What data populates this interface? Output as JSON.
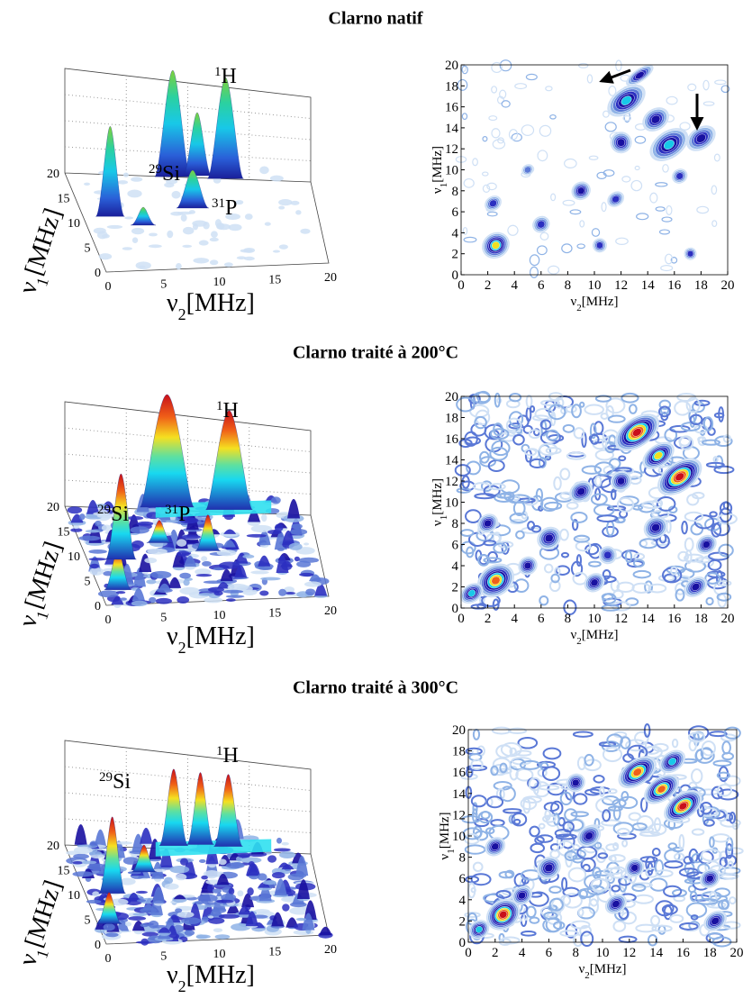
{
  "panels": [
    {
      "title": "Clarno natif",
      "surface": {
        "peaks": [
          {
            "sup": "1",
            "text": "H"
          },
          {
            "sup": "29",
            "text": "Si"
          },
          {
            "sup": "31",
            "text": "P"
          }
        ],
        "x_axis": {
          "symbol": "ν",
          "sub": "2",
          "unit": "[MHz]",
          "ticks": [
            0,
            5,
            10,
            15,
            20
          ]
        },
        "y_axis": {
          "symbol": "ν",
          "sub": "1",
          "unit": "[MHz]",
          "ticks": [
            0,
            5,
            10,
            15,
            20
          ]
        }
      },
      "contour": {
        "x_axis": {
          "symbol": "ν",
          "sub": "2",
          "unit": "[MHz]",
          "ticks": [
            0,
            2,
            4,
            6,
            8,
            10,
            12,
            14,
            16,
            18,
            20
          ]
        },
        "y_axis": {
          "symbol": "ν",
          "sub": "1",
          "unit": "[MHz]",
          "ticks": [
            0,
            2,
            4,
            6,
            8,
            10,
            12,
            14,
            16,
            18,
            20
          ]
        }
      }
    },
    {
      "title": "Clarno traité à 200°C",
      "surface": {
        "peaks": [
          {
            "sup": "1",
            "text": "H"
          },
          {
            "sup": "29",
            "text": "Si"
          },
          {
            "sup": "31",
            "text": "P"
          }
        ],
        "x_axis": {
          "symbol": "ν",
          "sub": "2",
          "unit": "[MHz]",
          "ticks": [
            0,
            5,
            10,
            15,
            20
          ]
        },
        "y_axis": {
          "symbol": "ν",
          "sub": "1",
          "unit": "[MHz]",
          "ticks": [
            0,
            5,
            10,
            15,
            20
          ]
        }
      },
      "contour": {
        "x_axis": {
          "symbol": "ν",
          "sub": "2",
          "unit": "[MHz]",
          "ticks": [
            0,
            2,
            4,
            6,
            8,
            10,
            12,
            14,
            16,
            18,
            20
          ]
        },
        "y_axis": {
          "symbol": "ν",
          "sub": "1",
          "unit": "[MHz]",
          "ticks": [
            0,
            2,
            4,
            6,
            8,
            10,
            12,
            14,
            16,
            18,
            20
          ]
        }
      }
    },
    {
      "title": "Clarno traité à 300°C",
      "surface": {
        "peaks": [
          {
            "sup": "1",
            "text": "H"
          },
          {
            "sup": "29",
            "text": "Si"
          }
        ],
        "x_axis": {
          "symbol": "ν",
          "sub": "2",
          "unit": "[MHz]",
          "ticks": [
            0,
            5,
            10,
            15,
            20
          ]
        },
        "y_axis": {
          "symbol": "ν",
          "sub": "1",
          "unit": "[MHz]",
          "ticks": [
            0,
            5,
            10,
            15,
            20
          ]
        }
      },
      "contour": {
        "x_axis": {
          "symbol": "ν",
          "sub": "2",
          "unit": "[MHz]",
          "ticks": [
            0,
            2,
            4,
            6,
            8,
            10,
            12,
            14,
            16,
            18,
            20
          ]
        },
        "y_axis": {
          "symbol": "ν",
          "sub": "1",
          "unit": "[MHz]",
          "ticks": [
            0,
            2,
            4,
            6,
            8,
            10,
            12,
            14,
            16,
            18,
            20
          ]
        }
      }
    }
  ]
}
